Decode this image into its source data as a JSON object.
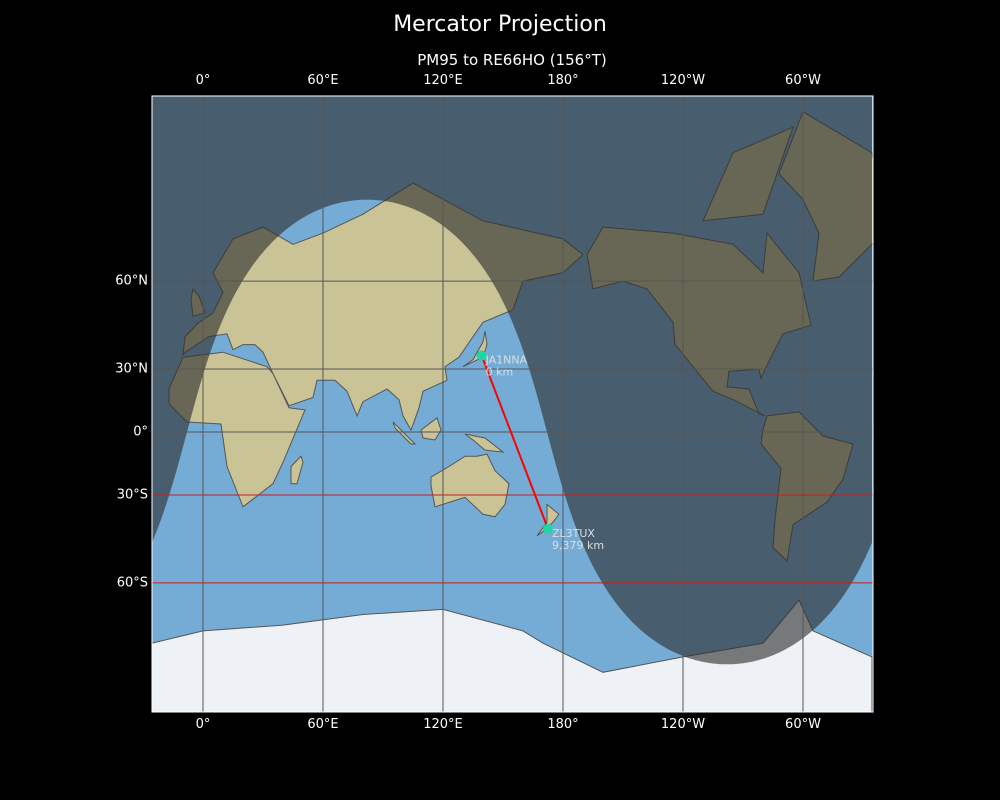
{
  "title": "Mercator Projection",
  "subtitle": "PM95 to RE66HO (156°T)",
  "map": {
    "projection": "Mercator",
    "extent_lon": [
      -25.5,
      334.5
    ],
    "extent_lat": [
      -80,
      84
    ],
    "lon_ticks": [
      {
        "lon": 0,
        "label": "0°"
      },
      {
        "lon": 60,
        "label": "60°E"
      },
      {
        "lon": 120,
        "label": "120°E"
      },
      {
        "lon": 180,
        "label": "180°"
      },
      {
        "lon": 240,
        "label": "120°W"
      },
      {
        "lon": 300,
        "label": "60°W"
      }
    ],
    "lat_ticks": [
      {
        "lat": 60,
        "label": "60°N"
      },
      {
        "lat": 30,
        "label": "30°N"
      },
      {
        "lat": 0,
        "label": "0°"
      },
      {
        "lat": -30,
        "label": "30°S"
      },
      {
        "lat": -60,
        "label": "60°S"
      }
    ],
    "highlighted_lats": [
      -30,
      -60
    ],
    "colors": {
      "ocean": "#74acd6",
      "land": "#c9c396",
      "ice": "#eef1f6",
      "night": "rgba(45,45,45,0.62)",
      "path": "#ff0000",
      "marker": "#1fd6a0",
      "grid": "#555555",
      "grid_highlight": "#c81e1e"
    },
    "terminator": {
      "subsolar_lon": 82,
      "solar_declination": -15
    },
    "stations": [
      {
        "call": "JA1NNA",
        "distance": "0 km",
        "lat": 35.7,
        "lon": 139.3
      },
      {
        "call": "ZL3TUX",
        "distance": "9,379 km",
        "lat": -43.5,
        "lon": 172.5
      }
    ]
  }
}
